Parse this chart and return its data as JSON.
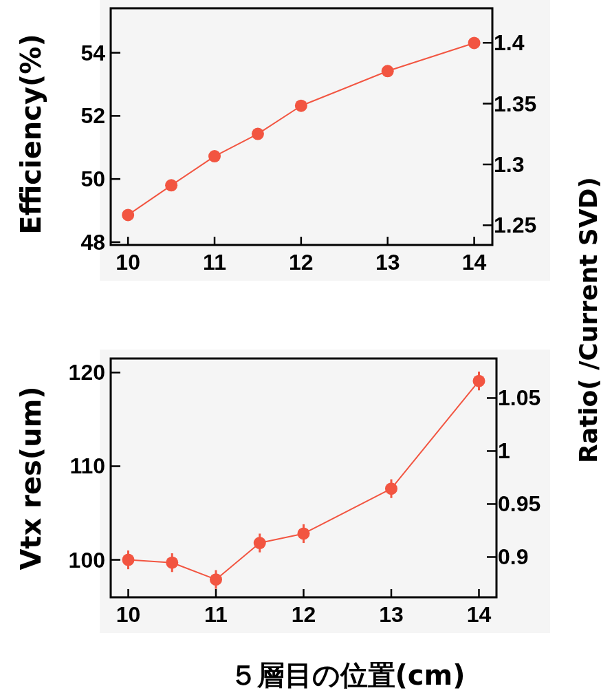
{
  "chart_data": [
    {
      "type": "line",
      "ylabel": "Efficiency(%)",
      "y2label": "Ratio( /Current SVD)",
      "x": [
        10,
        10.5,
        11,
        11.5,
        12,
        13,
        14
      ],
      "series": [
        {
          "color": "#f25541",
          "values": [
            48.86,
            49.8,
            50.72,
            51.43,
            52.32,
            53.42,
            54.31
          ]
        }
      ],
      "marker": "circle",
      "xlim": [
        9.8,
        14.21
      ],
      "xticks": [
        10,
        11,
        12,
        13,
        14
      ],
      "ylim": [
        47.91,
        55.41
      ],
      "yticks": [
        48,
        50,
        52,
        54
      ],
      "y2lim": [
        1.2338,
        1.4284
      ],
      "y2ticks": [
        1.25,
        1.3,
        1.35,
        1.4
      ]
    },
    {
      "type": "line",
      "ylabel": "Vtx res(um)",
      "xlabel": "５層目の位置(cm)",
      "x": [
        10,
        10.5,
        11,
        11.5,
        12,
        13,
        14
      ],
      "series": [
        {
          "color": "#f25541",
          "values": [
            100.0,
            99.7,
            97.9,
            101.8,
            102.8,
            107.6,
            119.1
          ],
          "errors": [
            1,
            1,
            1,
            1,
            1,
            1,
            1
          ]
        }
      ],
      "marker": "circle",
      "xlim": [
        9.8,
        14.2
      ],
      "xticks": [
        10,
        11,
        12,
        13,
        14
      ],
      "ylim": [
        96.0,
        121.5
      ],
      "yticks": [
        100,
        110,
        120
      ],
      "y2lim": [
        0.862,
        1.0873
      ],
      "y2ticks": [
        0.9,
        0.95,
        1,
        1.05
      ]
    }
  ]
}
